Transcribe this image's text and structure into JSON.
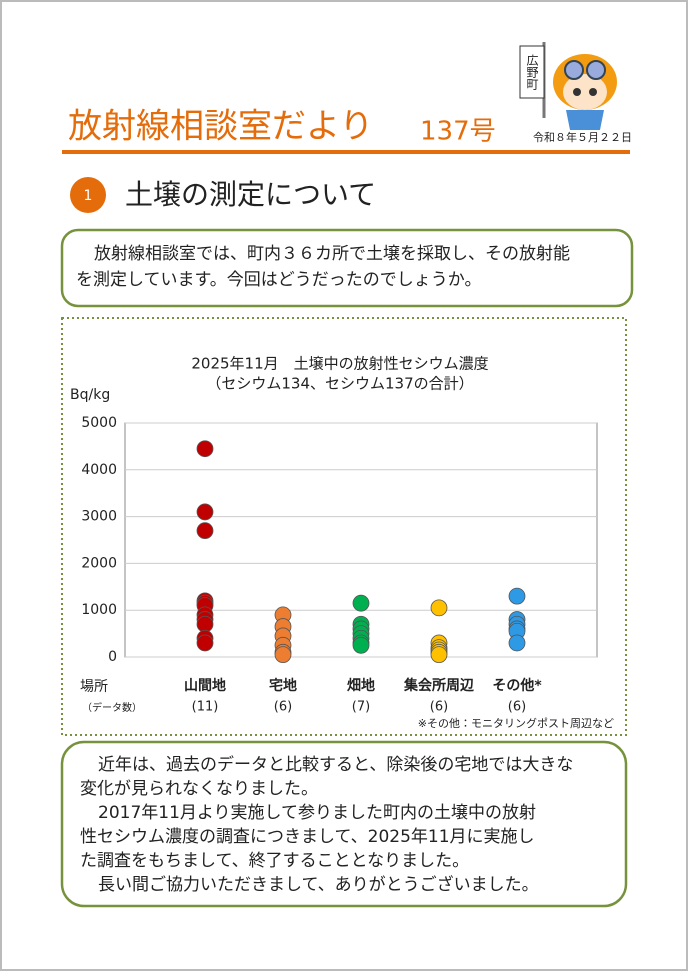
{
  "header": {
    "title": "放射線相談室だより",
    "issue": "137号",
    "date": "令和８年５月２２日",
    "mascot_flag": "広野町"
  },
  "section": {
    "number": "1",
    "heading": "土壌の測定について"
  },
  "intro": {
    "lines": [
      "放射線相談室では、町内３６カ所で土壌を採取し、その放射能",
      "を測定しています。今回はどうだったのでしょうか。"
    ]
  },
  "chart_data": {
    "type": "strip",
    "title": "2025年11月　土壌中の放射性セシウム濃度",
    "subtitle": "（セシウム134、セシウム137の合計）",
    "y_label": "Bq/kg",
    "x_label": "場所",
    "count_header": "（データ数）",
    "categories": [
      "山間地",
      "宅地",
      "畑地",
      "集会所周辺",
      "その他*"
    ],
    "counts": [
      "(11)",
      "(6)",
      "(7)",
      "(6)",
      "(6)"
    ],
    "colors": [
      "#c00000",
      "#ed7d31",
      "#00b050",
      "#ffc000",
      "#2e9ae6"
    ],
    "values": [
      [
        4450,
        3100,
        2700,
        1200,
        1150,
        1100,
        900,
        800,
        700,
        400,
        300
      ],
      [
        900,
        650,
        450,
        250,
        100,
        50
      ],
      [
        1150,
        700,
        600,
        500,
        400,
        300,
        250
      ],
      [
        1050,
        300,
        200,
        150,
        100,
        50
      ],
      [
        1300,
        800,
        700,
        600,
        550,
        300
      ]
    ],
    "ylim": [
      0,
      5000
    ],
    "yticks": [
      0,
      1000,
      2000,
      3000,
      4000,
      5000
    ],
    "grid": true,
    "note": "※その他：モニタリングポスト周辺など"
  },
  "closing": {
    "lines": [
      "近年は、過去のデータと比較すると、除染後の宅地では大きな",
      "変化が見られなくなりました。",
      "2017年11月より実施して参りました町内の土壌中の放射",
      "性セシウム濃度の調査につきまして、2025年11月に実施し",
      "た調査をもちまして、終了することとなりました。",
      "長い間ご協力いただきまして、ありがとうございました。"
    ]
  }
}
